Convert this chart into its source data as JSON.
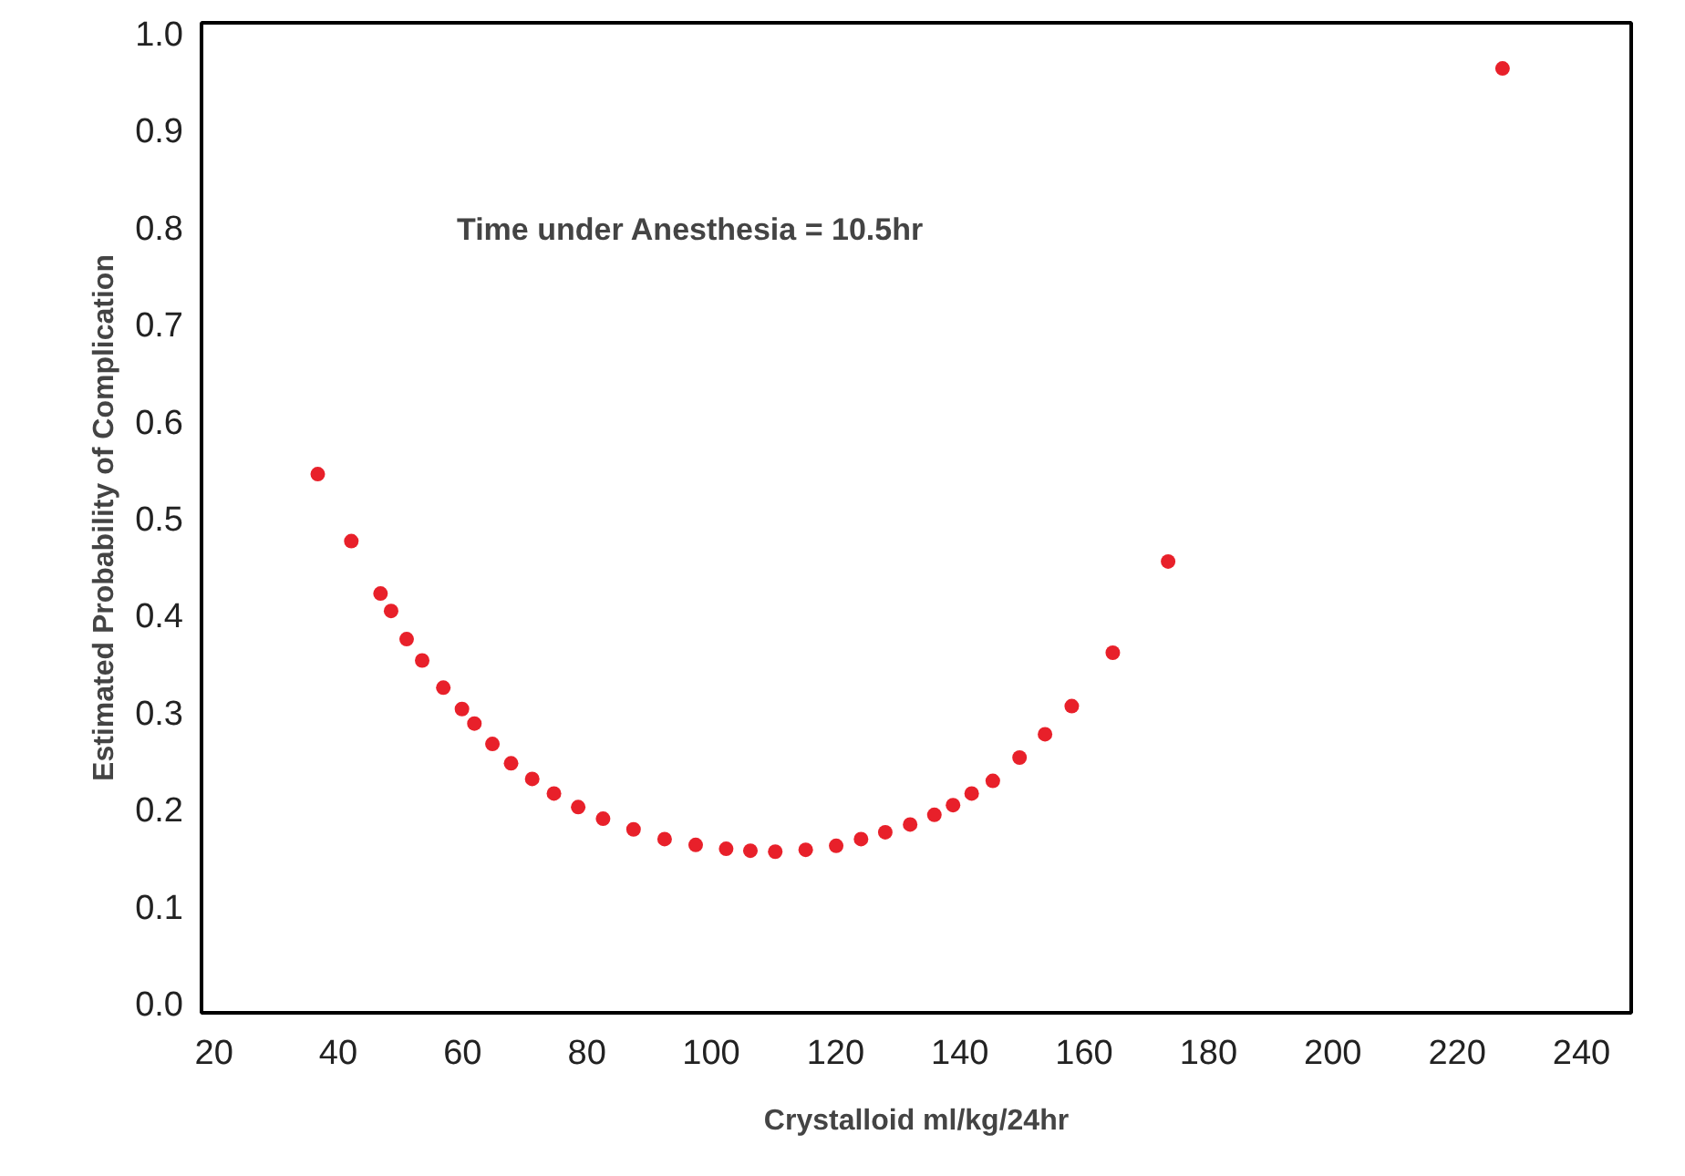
{
  "chart_data": {
    "type": "scatter",
    "xlabel": "Crystalloid ml/kg/24hr",
    "ylabel": "Estimated Probability of Complication",
    "annotations": [
      "Time under Anesthesia =  10.5hr"
    ],
    "x": [
      36.7,
      42.1,
      46.8,
      48.5,
      51.0,
      53.5,
      56.9,
      59.9,
      61.9,
      64.8,
      67.8,
      71.2,
      74.7,
      78.6,
      82.6,
      87.5,
      92.5,
      97.5,
      102.4,
      106.3,
      110.3,
      115.2,
      120.1,
      124.1,
      128.0,
      132.0,
      135.9,
      138.9,
      141.9,
      145.3,
      149.6,
      153.7,
      158.0,
      164.6,
      173.5,
      227.3
    ],
    "series": [
      {
        "color": "#e8202a",
        "values": [
          0.545,
          0.476,
          0.422,
          0.404,
          0.375,
          0.353,
          0.325,
          0.303,
          0.288,
          0.267,
          0.247,
          0.231,
          0.216,
          0.202,
          0.19,
          0.179,
          0.169,
          0.163,
          0.159,
          0.157,
          0.156,
          0.158,
          0.162,
          0.169,
          0.176,
          0.184,
          0.194,
          0.204,
          0.216,
          0.229,
          0.253,
          0.277,
          0.306,
          0.361,
          0.455,
          0.963
        ]
      }
    ],
    "xlim": [
      18,
      248
    ],
    "ylim": [
      -0.01,
      1.01
    ],
    "xticks": [
      20,
      40,
      60,
      80,
      100,
      120,
      140,
      160,
      180,
      200,
      220,
      240
    ],
    "yticks": [
      {
        "value": 0,
        "label": "0.0"
      },
      0.1,
      0.2,
      0.3,
      0.4,
      0.5,
      0.6,
      0.7,
      0.8,
      0.9,
      {
        "value": 1,
        "label": "1.0"
      }
    ],
    "grid": false,
    "marker": "circle"
  }
}
